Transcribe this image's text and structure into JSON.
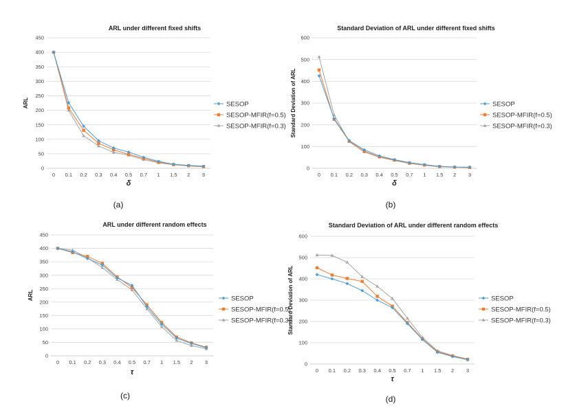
{
  "colors": {
    "SESOP": "#4a9bd6",
    "SESOP-MFIR(f=0.5)": "#ef7d31",
    "SESOP-MFIR(f=0.3)": "#a5a5a5"
  },
  "chart_data": [
    {
      "type": "line",
      "title": "ARL  under different fixed shifts",
      "xlabel": "δ",
      "ylabel": "ARL",
      "caption": "(a)",
      "categories": [
        "0",
        "0.1",
        "0.2",
        "0.3",
        "0.4",
        "0.5",
        "0.7",
        "1",
        "1.5",
        "2",
        "3"
      ],
      "ylim": [
        0,
        450
      ],
      "yticks": [
        0,
        50,
        100,
        150,
        200,
        250,
        300,
        350,
        400,
        450
      ],
      "series": [
        {
          "name": "SESOP",
          "values": [
            400,
            226,
            145,
            95,
            70,
            56,
            38,
            24,
            14,
            10,
            7
          ]
        },
        {
          "name": "SESOP-MFIR(f=0.5)",
          "values": [
            400,
            208,
            131,
            86,
            64,
            48,
            34,
            21,
            13,
            9,
            6
          ]
        },
        {
          "name": "SESOP-MFIR(f=0.3)",
          "values": [
            400,
            200,
            112,
            77,
            55,
            45,
            30,
            19,
            12,
            8,
            5
          ]
        }
      ]
    },
    {
      "type": "line",
      "title": "Standard Deviation of ARL  under different fixed shifts",
      "xlabel": "δ",
      "ylabel": "Standard Deviation of ARL",
      "caption": "(b)",
      "categories": [
        "0",
        "0.1",
        "0.2",
        "0.3",
        "0.4",
        "0.5",
        "0.7",
        "1",
        "1.5",
        "2",
        "3"
      ],
      "ylim": [
        0,
        600
      ],
      "yticks": [
        0,
        100,
        200,
        300,
        400,
        500,
        600
      ],
      "series": [
        {
          "name": "SESOP",
          "values": [
            425,
            228,
            127,
            85,
            57,
            40,
            26,
            17,
            9,
            6,
            5
          ]
        },
        {
          "name": "SESOP-MFIR(f=0.5)",
          "values": [
            452,
            225,
            124,
            79,
            53,
            38,
            24,
            15,
            8,
            5,
            4
          ]
        },
        {
          "name": "SESOP-MFIR(f=0.3)",
          "values": [
            512,
            245,
            122,
            75,
            51,
            36,
            22,
            14,
            7,
            5,
            3
          ]
        }
      ]
    },
    {
      "type": "line",
      "title": "ARL  under different random effects",
      "xlabel": "τ",
      "ylabel": "ARL",
      "caption": "(c)",
      "categories": [
        "0",
        "0.1",
        "0.2",
        "0.3",
        "0.4",
        "0.5",
        "0.7",
        "1",
        "1.5",
        "2",
        "3"
      ],
      "ylim": [
        0,
        450
      ],
      "yticks": [
        0,
        50,
        100,
        150,
        200,
        250,
        300,
        350,
        400,
        450
      ],
      "series": [
        {
          "name": "SESOP",
          "values": [
            400,
            387,
            362,
            338,
            290,
            262,
            183,
            118,
            66,
            46,
            30
          ]
        },
        {
          "name": "SESOP-MFIR(f=0.5)",
          "values": [
            400,
            384,
            370,
            344,
            294,
            254,
            190,
            124,
            70,
            48,
            32
          ]
        },
        {
          "name": "SESOP-MFIR(f=0.3)",
          "values": [
            400,
            393,
            365,
            328,
            284,
            245,
            175,
            108,
            57,
            38,
            26
          ]
        }
      ]
    },
    {
      "type": "line",
      "title": "Standard Deviation of ARL  under different random effects",
      "xlabel": "τ",
      "ylabel": "Standard Deviation of ARL",
      "caption": "(d)",
      "categories": [
        "0",
        "0.1",
        "0.2",
        "0.3",
        "0.4",
        "0.5",
        "0.7",
        "1",
        "1.5",
        "2",
        "3"
      ],
      "ylim": [
        0,
        600
      ],
      "yticks": [
        0,
        100,
        200,
        300,
        400,
        500,
        600
      ],
      "series": [
        {
          "name": "SESOP",
          "values": [
            420,
            400,
            378,
            345,
            300,
            265,
            190,
            115,
            55,
            35,
            20
          ]
        },
        {
          "name": "SESOP-MFIR(f=0.5)",
          "values": [
            452,
            418,
            402,
            388,
            318,
            272,
            195,
            118,
            58,
            38,
            22
          ]
        },
        {
          "name": "SESOP-MFIR(f=0.3)",
          "values": [
            512,
            510,
            478,
            410,
            365,
            308,
            215,
            125,
            62,
            40,
            24
          ]
        }
      ]
    }
  ]
}
